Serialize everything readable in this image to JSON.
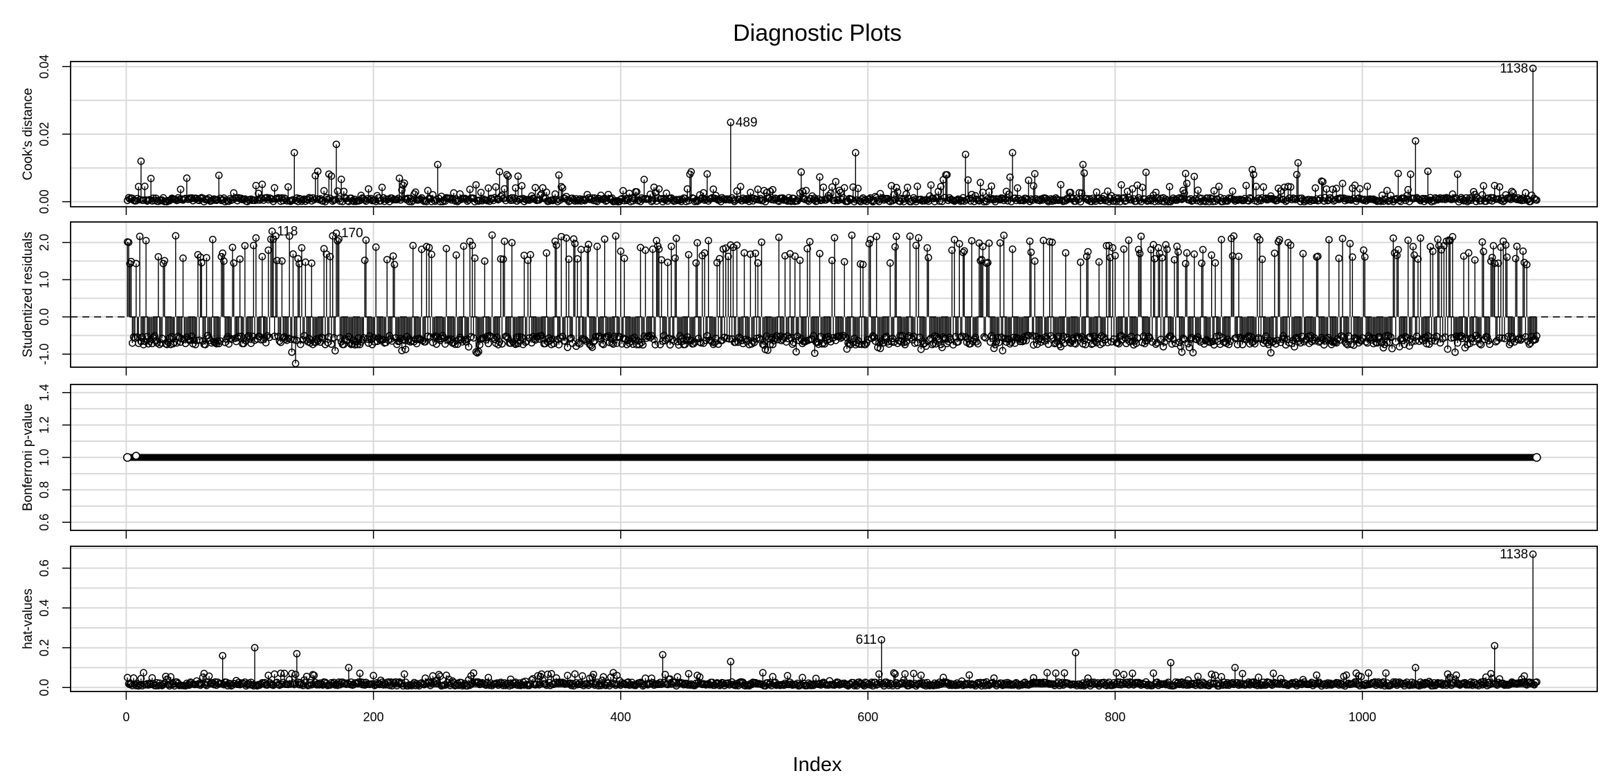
{
  "chart_data": {
    "title": "Diagnostic Plots",
    "xlabel": "Index",
    "xlim": [
      -45,
      1190
    ],
    "xticks": [
      0,
      200,
      400,
      600,
      800,
      1000
    ],
    "n": 1141,
    "panels": [
      {
        "type": "stem",
        "ylabel": "Cook's distance",
        "ylim": [
          -0.0015,
          0.0415
        ],
        "yticks": [
          "0.00",
          "0.02",
          "0.04"
        ],
        "gridY": [
          0.0,
          0.01,
          0.02,
          0.03,
          0.04
        ],
        "baseline": 0.0,
        "baseline_mode": "bottom",
        "highlights": [
          {
            "i": 12,
            "v": 0.012
          },
          {
            "i": 136,
            "v": 0.0145
          },
          {
            "i": 155,
            "v": 0.009
          },
          {
            "i": 170,
            "v": 0.017
          },
          {
            "i": 252,
            "v": 0.011
          },
          {
            "i": 308,
            "v": 0.008
          },
          {
            "i": 489,
            "v": 0.0235
          },
          {
            "i": 590,
            "v": 0.0145
          },
          {
            "i": 679,
            "v": 0.014
          },
          {
            "i": 717,
            "v": 0.0145
          },
          {
            "i": 774,
            "v": 0.011
          },
          {
            "i": 911,
            "v": 0.0095
          },
          {
            "i": 948,
            "v": 0.0115
          },
          {
            "i": 1043,
            "v": 0.018
          },
          {
            "i": 1053,
            "v": 0.009
          },
          {
            "i": 1138,
            "v": 0.0395
          }
        ],
        "labels": [
          {
            "text": "489",
            "i": 489,
            "v": 0.0235,
            "side": "right"
          },
          {
            "text": "1138",
            "i": 1138,
            "v": 0.0395,
            "side": "left"
          }
        ]
      },
      {
        "type": "stem",
        "ylabel": "Studentized residuals",
        "ylim": [
          -1.35,
          2.55
        ],
        "yticks": [
          "-1.0",
          "0.0",
          "1.0",
          "2.0"
        ],
        "gridY": [
          -1.0,
          -0.5,
          0.0,
          0.5,
          1.0,
          1.5,
          2.0
        ],
        "baseline": 0.0,
        "baseline_mode": "dashed",
        "highlights": [
          {
            "i": 118,
            "v": 2.3
          },
          {
            "i": 170,
            "v": 2.25
          },
          {
            "i": 137,
            "v": -1.25
          }
        ],
        "labels": [
          {
            "text": "118",
            "i": 118,
            "v": 2.3,
            "side": "right"
          },
          {
            "text": "170",
            "i": 170,
            "v": 2.25,
            "side": "right"
          }
        ]
      },
      {
        "type": "points",
        "ylabel": "Bonferroni p-value",
        "ylim": [
          0.55,
          1.45
        ],
        "yticks": [
          "0.6",
          "0.8",
          "1.0",
          "1.2",
          "1.4"
        ],
        "gridY": [
          0.6,
          0.7,
          0.8,
          0.9,
          1.0,
          1.1,
          1.2,
          1.3,
          1.4
        ],
        "value": 1.0,
        "highlights": [
          {
            "i": 8,
            "v": 1.01
          }
        ],
        "labels": []
      },
      {
        "type": "stem",
        "ylabel": "hat-values",
        "ylim": [
          -0.02,
          0.71
        ],
        "yticks": [
          "0.0",
          "0.2",
          "0.4",
          "0.6"
        ],
        "gridY": [
          0.0,
          0.1,
          0.2,
          0.3,
          0.4,
          0.5,
          0.6,
          0.7
        ],
        "baseline": 0.0,
        "baseline_mode": "bottom",
        "highlights": [
          {
            "i": 78,
            "v": 0.16
          },
          {
            "i": 104,
            "v": 0.2
          },
          {
            "i": 138,
            "v": 0.17
          },
          {
            "i": 180,
            "v": 0.1
          },
          {
            "i": 434,
            "v": 0.165
          },
          {
            "i": 489,
            "v": 0.13
          },
          {
            "i": 611,
            "v": 0.24
          },
          {
            "i": 768,
            "v": 0.175
          },
          {
            "i": 845,
            "v": 0.125
          },
          {
            "i": 897,
            "v": 0.1
          },
          {
            "i": 1043,
            "v": 0.1
          },
          {
            "i": 1107,
            "v": 0.21
          },
          {
            "i": 1138,
            "v": 0.67
          }
        ],
        "labels": [
          {
            "text": "611",
            "i": 611,
            "v": 0.24,
            "side": "left"
          },
          {
            "text": "1138",
            "i": 1138,
            "v": 0.67,
            "side": "left"
          }
        ]
      }
    ]
  }
}
